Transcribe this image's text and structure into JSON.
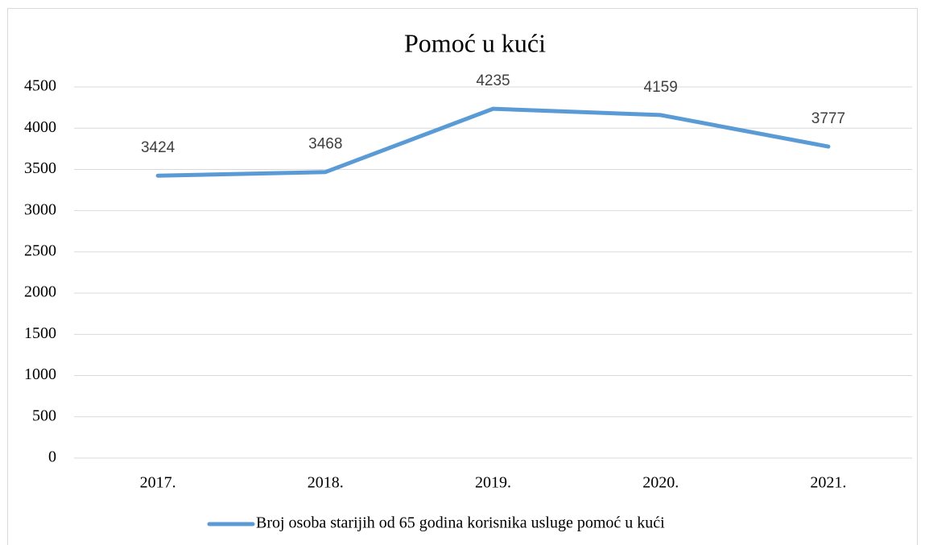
{
  "chart_data": {
    "type": "line",
    "title": "Pomoć u kući",
    "categories": [
      "2017.",
      "2018.",
      "2019.",
      "2020.",
      "2021."
    ],
    "series": [
      {
        "name": "Broj osoba starijih od 65 godina korisnika usluge pomoć u kući",
        "color": "#5b9bd5",
        "values": [
          3424,
          3468,
          4235,
          4159,
          3777
        ]
      }
    ],
    "ylim": [
      0,
      4500
    ],
    "yticks": [
      0,
      500,
      1000,
      1500,
      2000,
      2500,
      3000,
      3500,
      4000,
      4500
    ],
    "grid": true,
    "legend": "bottom"
  }
}
